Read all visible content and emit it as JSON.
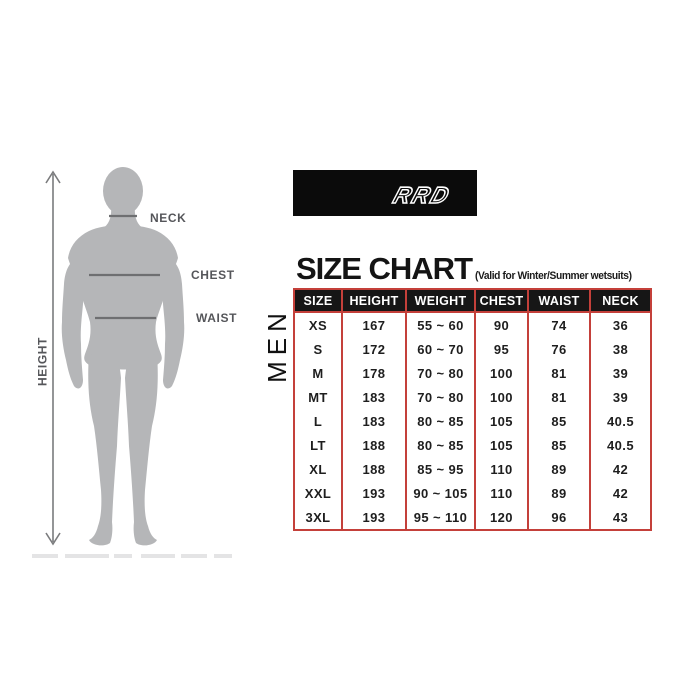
{
  "brand": {
    "logo": "RRD"
  },
  "header": {
    "title": "SIZE CHART",
    "subtitle": "(Valid for Winter/Summer wetsuits)"
  },
  "category_label": "MEN",
  "figure": {
    "neck_label": "NECK",
    "chest_label": "CHEST",
    "waist_label": "WAIST",
    "height_label": "HEIGHT"
  },
  "table": {
    "headers": [
      "SIZE",
      "HEIGHT",
      "WEIGHT",
      "CHEST",
      "WAIST",
      "NECK"
    ],
    "rows": [
      [
        "XS",
        "167",
        "55 ~ 60",
        "90",
        "74",
        "36"
      ],
      [
        "S",
        "172",
        "60 ~ 70",
        "95",
        "76",
        "38"
      ],
      [
        "M",
        "178",
        "70 ~ 80",
        "100",
        "81",
        "39"
      ],
      [
        "MT",
        "183",
        "70 ~ 80",
        "100",
        "81",
        "39"
      ],
      [
        "L",
        "183",
        "80 ~ 85",
        "105",
        "85",
        "40.5"
      ],
      [
        "LT",
        "188",
        "80 ~ 85",
        "105",
        "85",
        "40.5"
      ],
      [
        "XL",
        "188",
        "85 ~ 95",
        "110",
        "89",
        "42"
      ],
      [
        "XXL",
        "193",
        "90 ~ 105",
        "110",
        "89",
        "42"
      ],
      [
        "3XL",
        "193",
        "95 ~ 110",
        "120",
        "96",
        "43"
      ]
    ]
  },
  "colors": {
    "accent_red": "#c4403a",
    "table_header_bg": "#161616",
    "banner_bg": "#0b0b0b",
    "silhouette_gray": "#b5b6b8",
    "measure_label_gray": "#55565a"
  }
}
